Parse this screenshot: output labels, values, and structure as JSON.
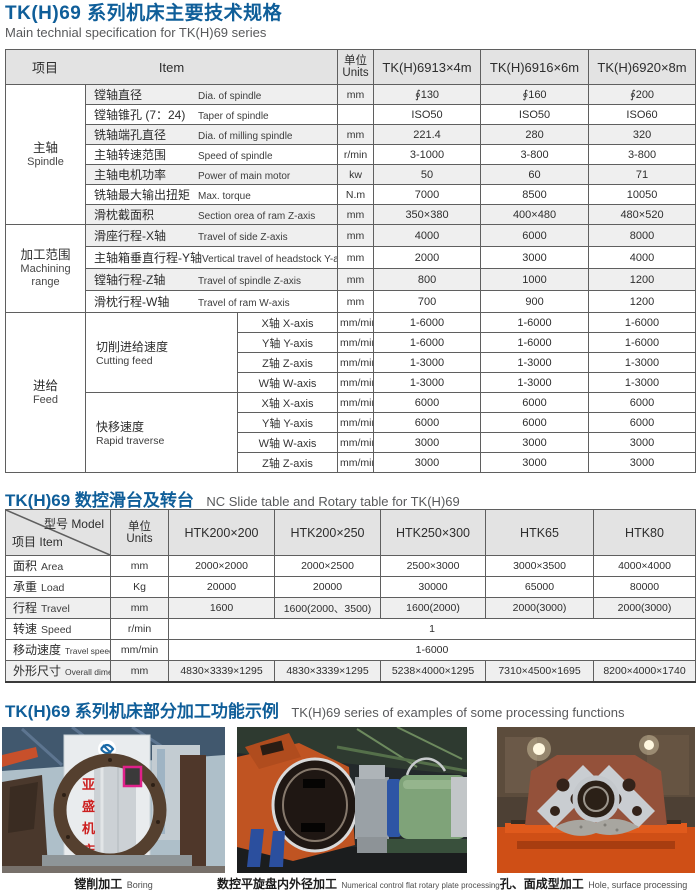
{
  "colors": {
    "title_blue": "#0f5e99",
    "subtitle_gray": "#58595b",
    "header_bg": "#e3e3e3",
    "shade_bg": "#efefef"
  },
  "section1": {
    "title_zh": "TK(H)69 系列机床主要技术规格",
    "title_en": "Main technial specification for TK(H)69 series",
    "header": {
      "item_zh": "项目",
      "item_en": "Item",
      "unit_zh": "单位",
      "unit_en": "Units",
      "models": [
        "TK(H)6913×4m",
        "TK(H)6916×6m",
        "TK(H)6920×8m"
      ]
    },
    "groups": [
      {
        "label_zh": "主轴",
        "label_en": "Spindle",
        "rows": [
          {
            "zh": "镗轴直径",
            "en": "Dia. of spindle",
            "unit": "mm",
            "v": [
              "∮130",
              "∮160",
              "∮200"
            ]
          },
          {
            "zh": "镗轴锥孔 (7：24)",
            "en": "Taper of spindle",
            "unit": "",
            "v": [
              "ISO50",
              "ISO50",
              "ISO60"
            ]
          },
          {
            "zh": "铣轴端孔直径",
            "en": "Dia. of milling spindle",
            "unit": "mm",
            "v": [
              "221.4",
              "280",
              "320"
            ]
          },
          {
            "zh": "主轴转速范围",
            "en": "Speed of spindle",
            "unit": "r/min",
            "v": [
              "3-1000",
              "3-800",
              "3-800"
            ]
          },
          {
            "zh": "主轴电机功率",
            "en": "Power of main motor",
            "unit": "kw",
            "v": [
              "50",
              "60",
              "71"
            ]
          },
          {
            "zh": "铣轴最大输出扭矩",
            "en": "Max. torque",
            "unit": "N.m",
            "v": [
              "7000",
              "8500",
              "10050"
            ]
          },
          {
            "zh": "滑枕截面积",
            "en": "Section orea of ram Z-axis",
            "unit": "mm",
            "v": [
              "350×380",
              "400×480",
              "480×520"
            ]
          }
        ]
      },
      {
        "label_zh": "加工范围",
        "label_en": "Machining range",
        "rows": [
          {
            "zh": "滑座行程-X轴",
            "en": "Travel of side Z-axis",
            "unit": "mm",
            "v": [
              "4000",
              "6000",
              "8000"
            ]
          },
          {
            "zh": "主轴箱垂直行程-Y轴",
            "en": "Vertical travel of headstock Y-axis",
            "unit": "mm",
            "v": [
              "2000",
              "3000",
              "4000"
            ]
          },
          {
            "zh": "镗轴行程-Z轴",
            "en": "Travel of spindle Z-axis",
            "unit": "mm",
            "v": [
              "800",
              "1000",
              "1200"
            ]
          },
          {
            "zh": "滑枕行程-W轴",
            "en": "Travel of ram W-axis",
            "unit": "mm",
            "v": [
              "700",
              "900",
              "1200"
            ]
          }
        ]
      },
      {
        "label_zh": "进给",
        "label_en": "Feed",
        "subgroups": [
          {
            "label_zh": "切削进给速度",
            "label_en": "Cutting feed",
            "rows": [
              {
                "axis_zh": "X轴",
                "axis_en": "X-axis",
                "unit": "mm/min",
                "v": [
                  "1-6000",
                  "1-6000",
                  "1-6000"
                ]
              },
              {
                "axis_zh": "Y轴",
                "axis_en": "Y-axis",
                "unit": "mm/min",
                "v": [
                  "1-6000",
                  "1-6000",
                  "1-6000"
                ]
              },
              {
                "axis_zh": "Z轴",
                "axis_en": "Z-axis",
                "unit": "mm/min",
                "v": [
                  "1-3000",
                  "1-3000",
                  "1-3000"
                ]
              },
              {
                "axis_zh": "W轴",
                "axis_en": "W-axis",
                "unit": "mm/min",
                "v": [
                  "1-3000",
                  "1-3000",
                  "1-3000"
                ]
              }
            ]
          },
          {
            "label_zh": "快移速度",
            "label_en": "Rapid traverse",
            "rows": [
              {
                "axis_zh": "X轴",
                "axis_en": "X-axis",
                "unit": "mm/min",
                "v": [
                  "6000",
                  "6000",
                  "6000"
                ]
              },
              {
                "axis_zh": "Y轴",
                "axis_en": "Y-axis",
                "unit": "mm/min",
                "v": [
                  "6000",
                  "6000",
                  "6000"
                ]
              },
              {
                "axis_zh": "W轴",
                "axis_en": "W-axis",
                "unit": "mm/min",
                "v": [
                  "3000",
                  "3000",
                  "3000"
                ]
              },
              {
                "axis_zh": "Z轴",
                "axis_en": "Z-axis",
                "unit": "mm/min",
                "v": [
                  "3000",
                  "3000",
                  "3000"
                ]
              }
            ]
          }
        ]
      }
    ]
  },
  "section2": {
    "title_zh": "TK(H)69 数控滑台及转台",
    "title_en": "NC Slide table and Rotary table for TK(H)69",
    "header": {
      "model_zh": "型号",
      "model_en": "Model",
      "item_zh": "项目",
      "item_en": "Item",
      "unit_zh": "单位",
      "unit_en": "Units",
      "models": [
        "HTK200×200",
        "HTK200×250",
        "HTK250×300",
        "HTK65",
        "HTK80"
      ]
    },
    "rows": [
      {
        "zh": "面积",
        "en": "Area",
        "unit": "mm",
        "v": [
          "2000×2000",
          "2000×2500",
          "2500×3000",
          "3000×3500",
          "4000×4000"
        ]
      },
      {
        "zh": "承重",
        "en": "Load",
        "unit": "Kg",
        "v": [
          "20000",
          "20000",
          "30000",
          "65000",
          "80000"
        ]
      },
      {
        "zh": "行程",
        "en": "Travel",
        "unit": "mm",
        "v": [
          "1600",
          "1600(2000、3500)",
          "1600(2000)",
          "2000(3000)",
          "2000(3000)"
        ]
      },
      {
        "zh": "转速",
        "en": "Speed",
        "unit": "r/min",
        "span": "1"
      },
      {
        "zh": "移动速度",
        "en": "Travel speed",
        "unit": "mm/min",
        "span": "1-6000"
      },
      {
        "zh": "外形尺寸",
        "en": "Overall dimensions",
        "unit": "mm",
        "v": [
          "4830×3339×1295",
          "4830×3339×1295",
          "5238×4000×1295",
          "7310×4500×1695",
          "8200×4000×1740"
        ]
      }
    ]
  },
  "section3": {
    "title_zh": "TK(H)69 系列机床部分加工功能示例",
    "title_en": "TK(H)69 series of examples of some processing functions",
    "photos": [
      {
        "caption_zh": "镗削加工",
        "caption_en": "Boring",
        "brand_chars": [
          "亚",
          "盛",
          "机",
          "床"
        ]
      },
      {
        "caption_zh": "数控平旋盘内外径加工",
        "caption_en": "Numerical control flat rotary plate processing"
      },
      {
        "caption_zh": "孔、面成型加工",
        "caption_en": "Hole, surface processing"
      }
    ]
  }
}
